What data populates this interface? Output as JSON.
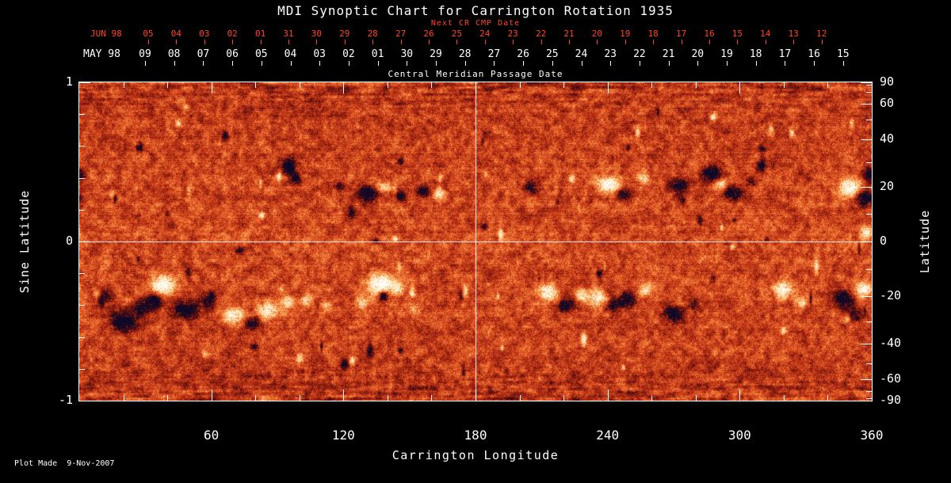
{
  "title": "MDI Synoptic Chart for Carrington Rotation 1935",
  "footer": {
    "plot_made": "Plot Made  9-Nov-2007"
  },
  "chart_data": {
    "type": "heatmap",
    "description": "MDI line-of-sight synoptic magnetogram for Carrington rotation 1935. Mottled orange quiet-Sun background with bipolar active regions (white = positive polarity, dark = negative polarity) concentrated in two activity bands near +/-20 degrees latitude. White crosshair marks longitude 180 and the equator.",
    "xlabel": "Carrington Longitude",
    "ylabel_left": "Sine Latitude",
    "ylabel_right": "Latitude",
    "xlim": [
      0,
      360
    ],
    "ylim_sine": [
      -1,
      1
    ],
    "x_major_ticks": [
      60,
      120,
      180,
      240,
      300,
      360
    ],
    "x_minor_step_deg": 20,
    "left_major_ticks": [
      1,
      0,
      -1
    ],
    "left_minor_step": 0.2,
    "right_tick_labels": [
      90,
      60,
      40,
      20,
      0,
      -20,
      -40,
      -60,
      -90
    ],
    "right_minor_step_deg": 10,
    "crosshair": {
      "carrington_longitude": 180,
      "sine_latitude": 0
    },
    "top_axis": {
      "label": "Central Meridian Passage Date",
      "next_cr_label": "Next CR CMP Date",
      "rows": [
        {
          "name": "next-cr",
          "month": "JUN 98",
          "color": "#ff4422",
          "days": [
            "05",
            "04",
            "03",
            "02",
            "01",
            "31",
            "30",
            "29",
            "28",
            "27",
            "26",
            "25",
            "24",
            "23",
            "22",
            "21",
            "20",
            "19",
            "18",
            "17",
            "16",
            "15",
            "14",
            "13",
            "12"
          ]
        },
        {
          "name": "cmp",
          "month": "MAY 98",
          "color": "#ffffff",
          "days": [
            "09",
            "08",
            "07",
            "06",
            "05",
            "04",
            "03",
            "02",
            "01",
            "30",
            "29",
            "28",
            "27",
            "26",
            "25",
            "24",
            "23",
            "22",
            "21",
            "20",
            "19",
            "18",
            "17",
            "16",
            "15"
          ]
        }
      ]
    },
    "colors": {
      "background": "#000000",
      "frame": "#ffffff",
      "text": "#ffffff",
      "date_red": "#ff4422",
      "field_base": "#ce3e1a",
      "field_positive": "#fffcf4",
      "field_negative": "#0a0a28"
    },
    "noise": {
      "seed": 1935
    },
    "active_regions": [
      [
        95,
        0.47,
        3,
        0.045,
        -1.5
      ],
      [
        98,
        0.4,
        2.5,
        0.035,
        -1.1
      ],
      [
        118,
        0.35,
        2,
        0.03,
        -0.8
      ],
      [
        131,
        0.3,
        5,
        0.05,
        -1.2
      ],
      [
        138,
        0.34,
        3,
        0.04,
        0.9
      ],
      [
        146,
        0.29,
        2.5,
        0.035,
        -0.9
      ],
      [
        156,
        0.32,
        3,
        0.04,
        -1.0
      ],
      [
        163,
        0.3,
        2.5,
        0.04,
        0.85
      ],
      [
        205,
        0.34,
        3,
        0.04,
        -0.9
      ],
      [
        240,
        0.36,
        5,
        0.05,
        1.4
      ],
      [
        247,
        0.3,
        3,
        0.04,
        -1.0
      ],
      [
        256,
        0.4,
        3,
        0.035,
        0.8
      ],
      [
        272,
        0.36,
        4,
        0.045,
        -1.2
      ],
      [
        287,
        0.43,
        4.5,
        0.05,
        -1.3
      ],
      [
        291,
        0.36,
        2.5,
        0.035,
        1.0
      ],
      [
        297,
        0.3,
        4.5,
        0.045,
        -1.2
      ],
      [
        305,
        0.38,
        2.5,
        0.03,
        -0.8
      ],
      [
        350,
        0.34,
        5,
        0.06,
        1.5
      ],
      [
        357,
        0.27,
        4,
        0.05,
        -1.5
      ],
      [
        359,
        0.42,
        3,
        0.04,
        -1.2
      ],
      [
        357,
        0.06,
        3,
        0.04,
        1.1
      ],
      [
        12,
        -0.33,
        3.5,
        0.045,
        -0.9
      ],
      [
        20,
        -0.5,
        6,
        0.06,
        -1.3
      ],
      [
        28,
        -0.42,
        4,
        0.05,
        -1.1
      ],
      [
        38,
        -0.27,
        5,
        0.06,
        1.6
      ],
      [
        34,
        -0.37,
        3.5,
        0.045,
        -1.2
      ],
      [
        48,
        -0.43,
        6,
        0.06,
        -1.2
      ],
      [
        58,
        -0.38,
        3,
        0.04,
        -0.9
      ],
      [
        70,
        -0.46,
        4.5,
        0.05,
        1.1
      ],
      [
        79,
        -0.51,
        3.5,
        0.04,
        -0.85
      ],
      [
        86,
        -0.43,
        5,
        0.05,
        1.25
      ],
      [
        95,
        -0.38,
        3,
        0.04,
        0.9
      ],
      [
        103,
        -0.36,
        3,
        0.04,
        1.0
      ],
      [
        112,
        -0.41,
        2.5,
        0.035,
        0.7
      ],
      [
        128,
        -0.39,
        3,
        0.04,
        0.9
      ],
      [
        137,
        -0.27,
        5.5,
        0.065,
        1.8
      ],
      [
        138,
        -0.34,
        2.2,
        0.035,
        -1.7
      ],
      [
        145,
        -0.3,
        2.5,
        0.035,
        0.9
      ],
      [
        152,
        -0.42,
        3,
        0.04,
        0.75
      ],
      [
        213,
        -0.32,
        4.5,
        0.05,
        1.25
      ],
      [
        221,
        -0.4,
        3.5,
        0.05,
        -1.2
      ],
      [
        228,
        -0.33,
        3,
        0.04,
        0.9
      ],
      [
        235,
        -0.35,
        4,
        0.05,
        1.05
      ],
      [
        243,
        -0.4,
        3,
        0.04,
        -0.9
      ],
      [
        249,
        -0.36,
        3.5,
        0.045,
        -1.1
      ],
      [
        257,
        -0.3,
        3,
        0.04,
        0.85
      ],
      [
        270,
        -0.45,
        4.5,
        0.045,
        -1.25
      ],
      [
        279,
        -0.4,
        2.5,
        0.035,
        -0.8
      ],
      [
        320,
        -0.3,
        4.5,
        0.05,
        1.3
      ],
      [
        327,
        -0.37,
        3,
        0.04,
        0.75
      ],
      [
        347,
        -0.36,
        4.5,
        0.05,
        -1.3
      ],
      [
        356,
        -0.3,
        3.5,
        0.045,
        1.25
      ],
      [
        352,
        -0.46,
        3.5,
        0.04,
        -0.9
      ]
    ]
  }
}
